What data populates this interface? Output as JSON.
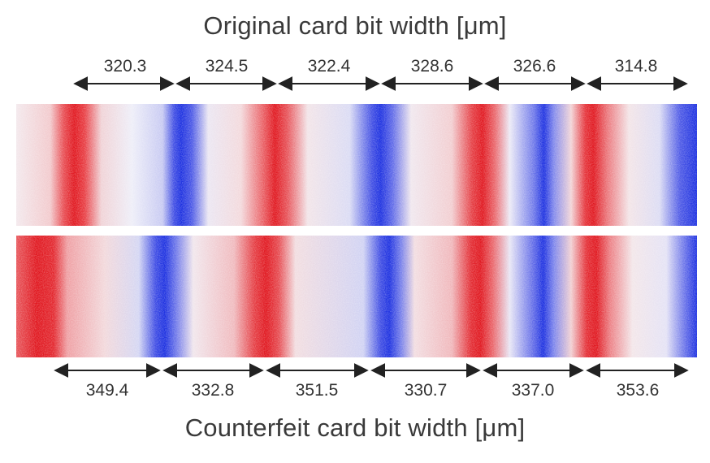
{
  "figure": {
    "top_title": "Original card bit width [μm]",
    "bottom_title": "Counterfeit card bit width [μm]",
    "top_widths": [
      "320.3",
      "324.5",
      "322.4",
      "328.6",
      "326.6",
      "314.8"
    ],
    "bottom_widths": [
      "349.4",
      "332.8",
      "351.5",
      "330.7",
      "337.0",
      "353.6"
    ],
    "colors": {
      "positive": "#e0141c",
      "negative": "#1a2ee0",
      "background": "#f7f2f4",
      "text": "#333333"
    }
  }
}
